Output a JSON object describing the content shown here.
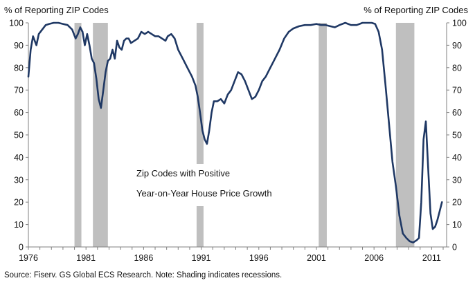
{
  "chart_data": {
    "type": "line",
    "ylabel_left": "% of Reporting ZIP Codes",
    "ylabel_right": "% of Reporting ZIP Codes",
    "annotation_lines": [
      "Zip Codes with Positive",
      "Year-on-Year House Price Growth"
    ],
    "source": "Source: Fiserv. GS Global ECS Research. Note: Shading indicates recessions.",
    "xlim": [
      1976,
      2012.3
    ],
    "ylim": [
      0,
      100
    ],
    "y_ticks": [
      0,
      10,
      20,
      30,
      40,
      50,
      60,
      70,
      80,
      90,
      100
    ],
    "x_ticks": [
      1976,
      1981,
      1986,
      1991,
      1996,
      2001,
      2006,
      2011
    ],
    "grid": false,
    "colors": {
      "line": "#1f3864",
      "recession": "#bfbfbf",
      "axis": "#7f7f7f"
    },
    "recessions": [
      {
        "start": 1980.0,
        "end": 1980.6
      },
      {
        "start": 1981.6,
        "end": 1982.9
      },
      {
        "start": 1990.6,
        "end": 1991.2
      },
      {
        "start": 2001.2,
        "end": 2001.9
      },
      {
        "start": 2007.9,
        "end": 2009.5
      }
    ],
    "series": [
      {
        "x": [
          1976.0,
          1976.2,
          1976.4,
          1976.7,
          1976.9,
          1977.2,
          1977.5,
          1977.8,
          1978.2,
          1978.6,
          1979.0,
          1979.4,
          1979.8,
          1980.1,
          1980.3,
          1980.5,
          1980.7,
          1980.9,
          1981.1,
          1981.3,
          1981.5,
          1981.7,
          1981.9,
          1982.1,
          1982.3,
          1982.5,
          1982.7,
          1982.9,
          1983.1,
          1983.3,
          1983.5,
          1983.7,
          1983.9,
          1984.1,
          1984.3,
          1984.5,
          1984.7,
          1984.9,
          1985.2,
          1985.5,
          1985.8,
          1986.1,
          1986.4,
          1986.7,
          1987.0,
          1987.3,
          1987.6,
          1987.9,
          1988.1,
          1988.4,
          1988.7,
          1989.0,
          1989.4,
          1989.8,
          1990.2,
          1990.5,
          1990.7,
          1990.9,
          1991.1,
          1991.3,
          1991.5,
          1991.7,
          1991.9,
          1992.1,
          1992.4,
          1992.7,
          1993.0,
          1993.3,
          1993.6,
          1993.9,
          1994.2,
          1994.5,
          1994.8,
          1995.1,
          1995.4,
          1995.7,
          1996.0,
          1996.3,
          1996.6,
          1997.0,
          1997.4,
          1997.8,
          1998.2,
          1998.6,
          1999.0,
          1999.5,
          2000.0,
          2000.5,
          2001.0,
          2001.4,
          2001.8,
          2002.2,
          2002.6,
          2003.0,
          2003.5,
          2004.0,
          2004.5,
          2005.0,
          2005.4,
          2005.8,
          2006.1,
          2006.4,
          2006.7,
          2007.0,
          2007.3,
          2007.6,
          2007.9,
          2008.2,
          2008.5,
          2008.8,
          2009.1,
          2009.4,
          2009.7,
          2009.9,
          2010.1,
          2010.3,
          2010.5,
          2010.7,
          2010.9,
          2011.1,
          2011.3,
          2011.5,
          2011.7,
          2011.9
        ],
        "y": [
          76,
          88,
          94,
          90,
          95,
          97,
          99,
          99.5,
          100,
          100,
          99.5,
          99,
          97,
          93,
          95,
          98,
          96,
          90,
          95,
          90,
          84,
          82,
          75,
          66,
          62,
          70,
          78,
          83,
          84,
          88,
          84,
          92,
          89,
          88,
          92,
          93,
          93,
          91,
          92,
          93,
          96,
          95,
          96,
          95,
          94,
          94,
          93,
          92,
          94,
          95,
          93,
          88,
          84,
          80,
          76,
          72,
          67,
          60,
          52,
          48,
          46,
          52,
          60,
          65,
          65,
          66,
          64,
          68,
          70,
          74,
          78,
          77,
          74,
          70,
          66,
          67,
          70,
          74,
          76,
          80,
          84,
          88,
          93,
          96,
          97.5,
          98.5,
          99,
          99,
          99.5,
          99,
          99,
          98.5,
          98,
          99,
          100,
          99,
          99,
          100,
          100,
          100,
          99.5,
          96,
          88,
          72,
          55,
          38,
          27,
          14,
          6,
          4,
          2.5,
          2,
          3,
          4,
          20,
          48,
          56,
          35,
          15,
          8,
          9,
          12,
          16,
          20
        ]
      }
    ]
  }
}
